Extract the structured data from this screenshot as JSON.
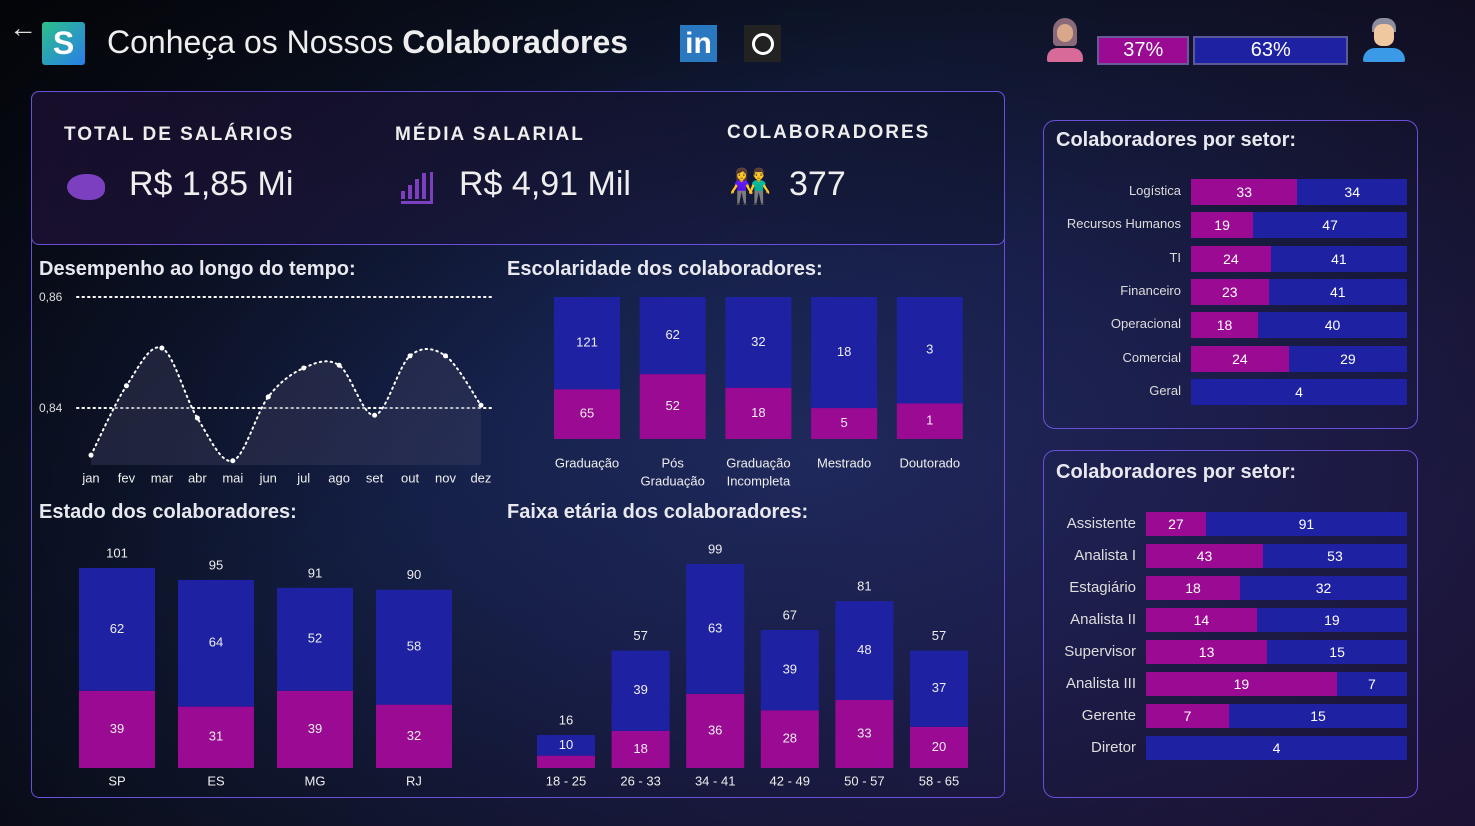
{
  "header": {
    "title_light": "Conheça os Nossos",
    "title_bold": "Colaboradores",
    "logo_letter": "S",
    "linkedin": "in",
    "gender": {
      "female_pct": 37,
      "male_pct": 63,
      "female_label": "37%",
      "male_label": "63%"
    }
  },
  "colors": {
    "female": "#9a0a93",
    "male": "#1e22a2",
    "border": "#6a4fd8"
  },
  "kpis": [
    {
      "label": "TOTAL DE SALÁRIOS",
      "value": "R$ 1,85 Mi",
      "icon": "piggy-bank-icon"
    },
    {
      "label": "MÉDIA SALARIAL",
      "value": "R$ 4,91 Mil",
      "icon": "bar-chart-icon"
    },
    {
      "label": "COLABORADORES",
      "value": "377",
      "icon": "people-icon"
    }
  ],
  "chart_data": [
    {
      "type": "line",
      "title": "Desempenho ao longo do tempo:",
      "categories": [
        "jan",
        "fev",
        "mar",
        "abr",
        "mai",
        "jun",
        "jul",
        "ago",
        "set",
        "out",
        "nov",
        "dez"
      ],
      "values": [
        0.8315,
        0.844,
        0.8508,
        0.8382,
        0.8305,
        0.842,
        0.8472,
        0.8477,
        0.8387,
        0.8494,
        0.8494,
        0.8405
      ],
      "yticks": [
        "0,86",
        "0,84"
      ],
      "ytick_values": [
        0.86,
        0.84
      ],
      "grid": true
    },
    {
      "type": "bar",
      "stacked": "percent",
      "title": "Escolaridade dos colaboradores:",
      "categories": [
        "Graduação",
        "Pós Graduação",
        "Graduação Incompleta",
        "Mestrado",
        "Doutorado"
      ],
      "category_lines": [
        [
          "Graduação"
        ],
        [
          "Pós",
          "Graduação"
        ],
        [
          "Graduação",
          "Incompleta"
        ],
        [
          "Mestrado"
        ],
        [
          "Doutorado"
        ]
      ],
      "series": [
        {
          "color": "female",
          "values": [
            65,
            52,
            18,
            5,
            1
          ]
        },
        {
          "color": "male",
          "values": [
            121,
            62,
            32,
            18,
            3
          ]
        }
      ]
    },
    {
      "type": "bar",
      "stacked": true,
      "title": "Estado dos colaboradores:",
      "categories": [
        "SP",
        "ES",
        "MG",
        "RJ"
      ],
      "totals": [
        101,
        95,
        91,
        90
      ],
      "series": [
        {
          "color": "female",
          "values": [
            39,
            31,
            39,
            32
          ]
        },
        {
          "color": "male",
          "values": [
            62,
            64,
            52,
            58
          ]
        }
      ]
    },
    {
      "type": "bar",
      "stacked": true,
      "title": "Faixa etária dos colaboradores:",
      "categories": [
        "18 - 25",
        "26 - 33",
        "34 - 41",
        "42 - 49",
        "50 - 57",
        "58 - 65"
      ],
      "totals": [
        16,
        57,
        99,
        67,
        81,
        57
      ],
      "series": [
        {
          "color": "female",
          "values": [
            6,
            18,
            36,
            28,
            33,
            20
          ],
          "hide_labels_below": 8
        },
        {
          "color": "male",
          "values": [
            10,
            39,
            63,
            39,
            48,
            37
          ]
        }
      ]
    },
    {
      "type": "bar",
      "orientation": "horizontal",
      "stacked": "percent",
      "title": "Colaboradores por setor:",
      "categories": [
        "Logística",
        "Recursos Humanos",
        "TI",
        "Financeiro",
        "Operacional",
        "Comercial",
        "Geral"
      ],
      "series": [
        {
          "color": "female",
          "values": [
            33,
            19,
            24,
            23,
            18,
            24,
            0
          ]
        },
        {
          "color": "male",
          "values": [
            34,
            47,
            41,
            41,
            40,
            29,
            4
          ]
        }
      ]
    },
    {
      "type": "bar",
      "orientation": "horizontal",
      "stacked": "percent",
      "title": "Colaboradores por setor:",
      "categories": [
        "Assistente",
        "Analista I",
        "Estagiário",
        "Analista II",
        "Supervisor",
        "Analista III",
        "Gerente",
        "Diretor"
      ],
      "series": [
        {
          "color": "female",
          "values": [
            27,
            43,
            18,
            14,
            13,
            19,
            7,
            0
          ]
        },
        {
          "color": "male",
          "values": [
            91,
            53,
            32,
            19,
            15,
            7,
            15,
            4
          ]
        }
      ]
    }
  ]
}
